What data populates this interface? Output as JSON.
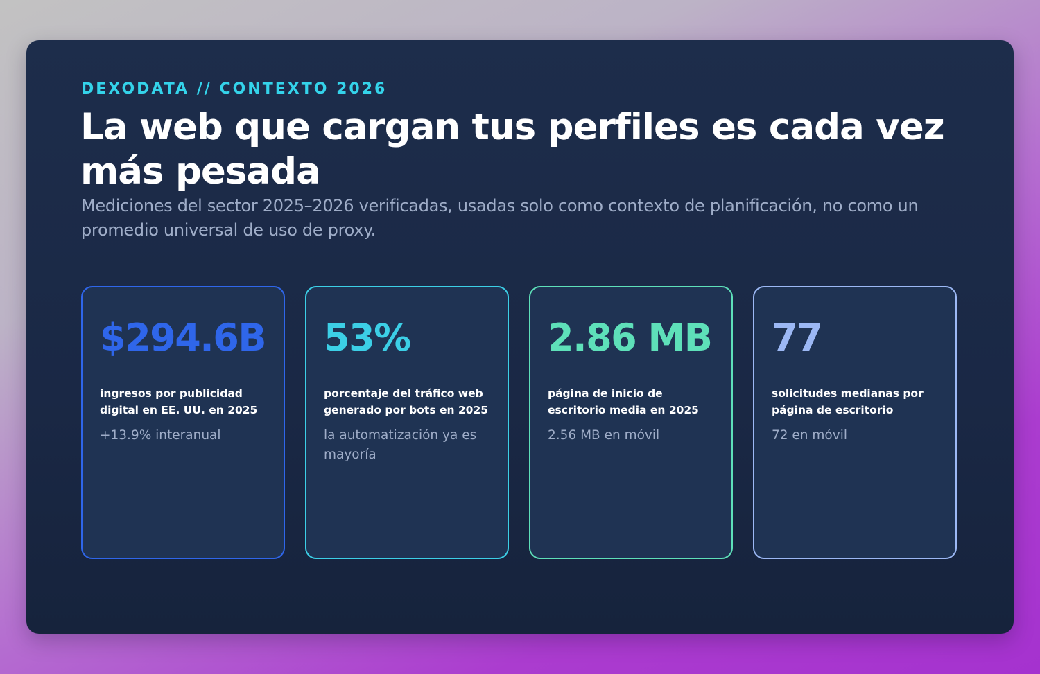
{
  "header": {
    "eyebrow": "DEXODATA // CONTEXTO 2026",
    "title": "La web que cargan tus perfiles es cada vez más pesada",
    "subtitle": "Mediciones del sector 2025–2026 verificadas, usadas solo como contexto de planificación, no como un promedio universal de uso de proxy."
  },
  "cards": [
    {
      "value": "$294.6B",
      "label": "ingresos por publicidad digital en EE. UU. en 2025",
      "note": "+13.9% interanual",
      "accent": "#2f66ea"
    },
    {
      "value": "53%",
      "label": "porcentaje del tráfico web generado por bots en 2025",
      "note": "la automatización ya es mayoría",
      "accent": "#3ccfe6"
    },
    {
      "value": "2.86 MB",
      "label": "página de inicio de escritorio media en 2025",
      "note": "2.56 MB en móvil",
      "accent": "#5ee0b9"
    },
    {
      "value": "77",
      "label": "solicitudes medianas por página de escritorio",
      "note": "72 en móvil",
      "accent": "#9cb8f4"
    }
  ],
  "colors": {
    "panel": "#1c2b48",
    "card_background": "#1f3353",
    "eyebrow": "#34d3ea",
    "muted_text": "#9fadc8"
  }
}
